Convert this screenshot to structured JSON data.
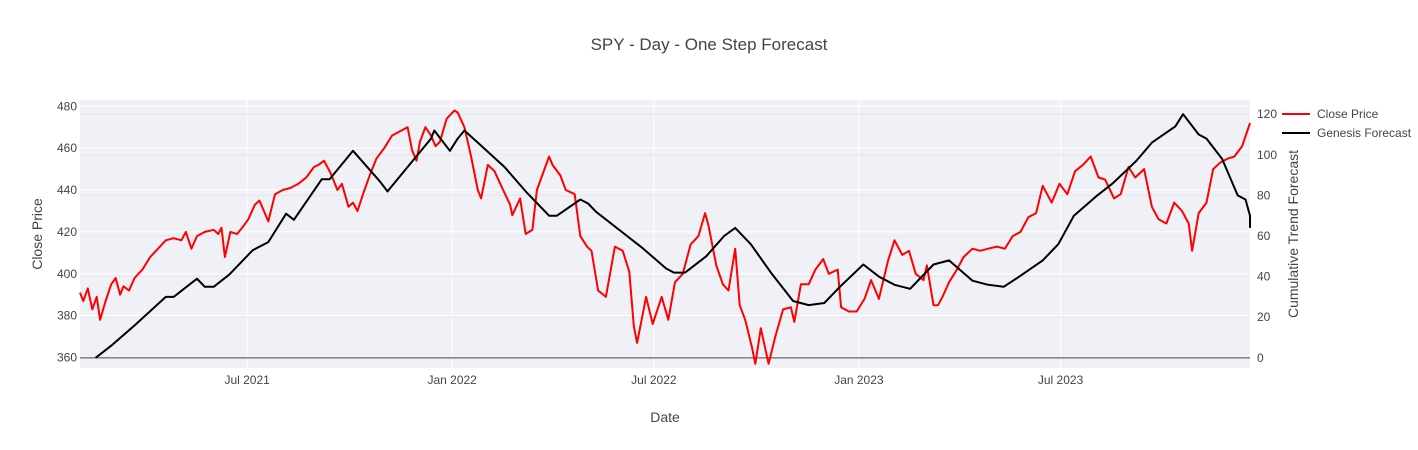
{
  "chart_data": {
    "type": "line",
    "title": "SPY - Day - One Step Forecast",
    "xlabel": "Date",
    "ylabel": "Close Price",
    "y2label": "Cumulative Trend Forecast",
    "xlim": [
      "2021-02-01",
      "2023-12-18"
    ],
    "ylim": [
      355,
      483
    ],
    "y2lim": [
      -5,
      127
    ],
    "x_ticks": [
      {
        "date": "2021-07-01",
        "label": "Jul 2021"
      },
      {
        "date": "2022-01-01",
        "label": "Jan 2022"
      },
      {
        "date": "2022-07-01",
        "label": "Jul 2022"
      },
      {
        "date": "2023-01-01",
        "label": "Jan 2023"
      },
      {
        "date": "2023-07-01",
        "label": "Jul 2023"
      }
    ],
    "y_ticks": [
      360,
      380,
      400,
      420,
      440,
      460,
      480
    ],
    "y2_ticks": [
      0,
      20,
      40,
      60,
      80,
      100,
      120
    ],
    "grid": true,
    "legend_position": "top-right",
    "colors": {
      "close": "#ff0000",
      "forecast": "#000000",
      "plot_bg": "#f0f1f6",
      "grid": "#ffffff"
    },
    "series": [
      {
        "name": "Close Price",
        "axis": "left",
        "points": [
          [
            "2021-02-01",
            391
          ],
          [
            "2021-02-04",
            387
          ],
          [
            "2021-02-08",
            393
          ],
          [
            "2021-02-12",
            383
          ],
          [
            "2021-02-16",
            389
          ],
          [
            "2021-02-19",
            378
          ],
          [
            "2021-02-24",
            387
          ],
          [
            "2021-03-01",
            395
          ],
          [
            "2021-03-05",
            398
          ],
          [
            "2021-03-09",
            390
          ],
          [
            "2021-03-12",
            394
          ],
          [
            "2021-03-17",
            392
          ],
          [
            "2021-03-22",
            398
          ],
          [
            "2021-03-29",
            402
          ],
          [
            "2021-04-05",
            408
          ],
          [
            "2021-04-12",
            412
          ],
          [
            "2021-04-19",
            416
          ],
          [
            "2021-04-26",
            417
          ],
          [
            "2021-05-03",
            416
          ],
          [
            "2021-05-07",
            420
          ],
          [
            "2021-05-12",
            412
          ],
          [
            "2021-05-17",
            418
          ],
          [
            "2021-05-24",
            420
          ],
          [
            "2021-06-01",
            421
          ],
          [
            "2021-06-05",
            419
          ],
          [
            "2021-06-08",
            422
          ],
          [
            "2021-06-11",
            408
          ],
          [
            "2021-06-16",
            420
          ],
          [
            "2021-06-22",
            419
          ],
          [
            "2021-06-28",
            423
          ],
          [
            "2021-07-02",
            426
          ],
          [
            "2021-07-08",
            433
          ],
          [
            "2021-07-12",
            435
          ],
          [
            "2021-07-16",
            430
          ],
          [
            "2021-07-20",
            425
          ],
          [
            "2021-07-26",
            438
          ],
          [
            "2021-08-02",
            440
          ],
          [
            "2021-08-09",
            441
          ],
          [
            "2021-08-16",
            443
          ],
          [
            "2021-08-23",
            446
          ],
          [
            "2021-08-30",
            451
          ],
          [
            "2021-09-03",
            452
          ],
          [
            "2021-09-08",
            454
          ],
          [
            "2021-09-14",
            448
          ],
          [
            "2021-09-20",
            440
          ],
          [
            "2021-09-24",
            443
          ],
          [
            "2021-09-30",
            432
          ],
          [
            "2021-10-04",
            434
          ],
          [
            "2021-10-08",
            430
          ],
          [
            "2021-10-13",
            438
          ],
          [
            "2021-10-19",
            447
          ],
          [
            "2021-10-25",
            455
          ],
          [
            "2021-11-01",
            460
          ],
          [
            "2021-11-08",
            466
          ],
          [
            "2021-11-15",
            468
          ],
          [
            "2021-11-22",
            470
          ],
          [
            "2021-11-26",
            459
          ],
          [
            "2021-11-30",
            454
          ],
          [
            "2021-12-03",
            463
          ],
          [
            "2021-12-08",
            470
          ],
          [
            "2021-12-13",
            466
          ],
          [
            "2021-12-17",
            461
          ],
          [
            "2021-12-21",
            463
          ],
          [
            "2021-12-27",
            474
          ],
          [
            "2022-01-03",
            478
          ],
          [
            "2022-01-06",
            477
          ],
          [
            "2022-01-12",
            470
          ],
          [
            "2022-01-18",
            456
          ],
          [
            "2022-01-24",
            440
          ],
          [
            "2022-01-27",
            436
          ],
          [
            "2022-02-02",
            452
          ],
          [
            "2022-02-08",
            449
          ],
          [
            "2022-02-14",
            442
          ],
          [
            "2022-02-22",
            433
          ],
          [
            "2022-02-24",
            428
          ],
          [
            "2022-03-03",
            436
          ],
          [
            "2022-03-08",
            419
          ],
          [
            "2022-03-14",
            421
          ],
          [
            "2022-03-18",
            440
          ],
          [
            "2022-03-29",
            456
          ],
          [
            "2022-04-01",
            452
          ],
          [
            "2022-04-08",
            447
          ],
          [
            "2022-04-13",
            440
          ],
          [
            "2022-04-21",
            438
          ],
          [
            "2022-04-26",
            418
          ],
          [
            "2022-05-02",
            413
          ],
          [
            "2022-05-06",
            411
          ],
          [
            "2022-05-12",
            392
          ],
          [
            "2022-05-19",
            389
          ],
          [
            "2022-05-27",
            413
          ],
          [
            "2022-06-03",
            411
          ],
          [
            "2022-06-09",
            401
          ],
          [
            "2022-06-13",
            375
          ],
          [
            "2022-06-16",
            367
          ],
          [
            "2022-06-24",
            389
          ],
          [
            "2022-06-30",
            376
          ],
          [
            "2022-07-08",
            389
          ],
          [
            "2022-07-14",
            378
          ],
          [
            "2022-07-20",
            396
          ],
          [
            "2022-07-27",
            400
          ],
          [
            "2022-08-03",
            414
          ],
          [
            "2022-08-10",
            418
          ],
          [
            "2022-08-16",
            429
          ],
          [
            "2022-08-19",
            423
          ],
          [
            "2022-08-26",
            404
          ],
          [
            "2022-09-01",
            395
          ],
          [
            "2022-09-06",
            392
          ],
          [
            "2022-09-12",
            412
          ],
          [
            "2022-09-16",
            385
          ],
          [
            "2022-09-21",
            378
          ],
          [
            "2022-09-27",
            365
          ],
          [
            "2022-09-30",
            357
          ],
          [
            "2022-10-05",
            374
          ],
          [
            "2022-10-12",
            357
          ],
          [
            "2022-10-18",
            370
          ],
          [
            "2022-10-25",
            383
          ],
          [
            "2022-11-01",
            384
          ],
          [
            "2022-11-04",
            377
          ],
          [
            "2022-11-10",
            395
          ],
          [
            "2022-11-17",
            395
          ],
          [
            "2022-11-23",
            402
          ],
          [
            "2022-11-30",
            407
          ],
          [
            "2022-12-05",
            400
          ],
          [
            "2022-12-13",
            402
          ],
          [
            "2022-12-16",
            384
          ],
          [
            "2022-12-23",
            382
          ],
          [
            "2022-12-30",
            382
          ],
          [
            "2023-01-06",
            388
          ],
          [
            "2023-01-12",
            397
          ],
          [
            "2023-01-19",
            388
          ],
          [
            "2023-01-27",
            406
          ],
          [
            "2023-02-02",
            416
          ],
          [
            "2023-02-09",
            409
          ],
          [
            "2023-02-15",
            411
          ],
          [
            "2023-02-21",
            400
          ],
          [
            "2023-02-28",
            397
          ],
          [
            "2023-03-03",
            404
          ],
          [
            "2023-03-09",
            385
          ],
          [
            "2023-03-13",
            385
          ],
          [
            "2023-03-17",
            389
          ],
          [
            "2023-03-23",
            396
          ],
          [
            "2023-03-30",
            402
          ],
          [
            "2023-04-05",
            408
          ],
          [
            "2023-04-13",
            412
          ],
          [
            "2023-04-20",
            411
          ],
          [
            "2023-04-27",
            412
          ],
          [
            "2023-05-05",
            413
          ],
          [
            "2023-05-12",
            412
          ],
          [
            "2023-05-19",
            418
          ],
          [
            "2023-05-26",
            420
          ],
          [
            "2023-06-02",
            427
          ],
          [
            "2023-06-09",
            429
          ],
          [
            "2023-06-15",
            442
          ],
          [
            "2023-06-23",
            434
          ],
          [
            "2023-06-30",
            443
          ],
          [
            "2023-07-07",
            438
          ],
          [
            "2023-07-14",
            449
          ],
          [
            "2023-07-21",
            452
          ],
          [
            "2023-07-28",
            456
          ],
          [
            "2023-08-04",
            446
          ],
          [
            "2023-08-10",
            445
          ],
          [
            "2023-08-18",
            436
          ],
          [
            "2023-08-24",
            438
          ],
          [
            "2023-08-31",
            451
          ],
          [
            "2023-09-06",
            446
          ],
          [
            "2023-09-14",
            450
          ],
          [
            "2023-09-21",
            432
          ],
          [
            "2023-09-27",
            426
          ],
          [
            "2023-10-04",
            424
          ],
          [
            "2023-10-11",
            434
          ],
          [
            "2023-10-18",
            430
          ],
          [
            "2023-10-24",
            424
          ],
          [
            "2023-10-27",
            411
          ],
          [
            "2023-11-02",
            429
          ],
          [
            "2023-11-09",
            434
          ],
          [
            "2023-11-15",
            450
          ],
          [
            "2023-11-21",
            453
          ],
          [
            "2023-11-28",
            455
          ],
          [
            "2023-12-04",
            456
          ],
          [
            "2023-12-11",
            461
          ],
          [
            "2023-12-18",
            472
          ]
        ]
      },
      {
        "name": "Genesis Forecast",
        "axis": "right",
        "points": [
          [
            "2021-02-15",
            0
          ],
          [
            "2021-03-01",
            6
          ],
          [
            "2021-03-22",
            16
          ],
          [
            "2021-04-19",
            30
          ],
          [
            "2021-04-26",
            30
          ],
          [
            "2021-05-17",
            39
          ],
          [
            "2021-05-24",
            35
          ],
          [
            "2021-06-01",
            35
          ],
          [
            "2021-06-15",
            41
          ],
          [
            "2021-07-06",
            53
          ],
          [
            "2021-07-20",
            57
          ],
          [
            "2021-08-05",
            71
          ],
          [
            "2021-08-12",
            68
          ],
          [
            "2021-09-06",
            88
          ],
          [
            "2021-09-13",
            88
          ],
          [
            "2021-10-04",
            102
          ],
          [
            "2021-10-28",
            87
          ],
          [
            "2021-11-04",
            82
          ],
          [
            "2021-12-13",
            108
          ],
          [
            "2021-12-16",
            112
          ],
          [
            "2021-12-30",
            102
          ],
          [
            "2022-01-06",
            108
          ],
          [
            "2022-01-12",
            112
          ],
          [
            "2022-01-24",
            106
          ],
          [
            "2022-02-17",
            94
          ],
          [
            "2022-03-08",
            82
          ],
          [
            "2022-03-29",
            70
          ],
          [
            "2022-04-05",
            70
          ],
          [
            "2022-04-26",
            78
          ],
          [
            "2022-05-03",
            76
          ],
          [
            "2022-05-10",
            72
          ],
          [
            "2022-06-07",
            60
          ],
          [
            "2022-06-21",
            54
          ],
          [
            "2022-07-12",
            44
          ],
          [
            "2022-07-19",
            42
          ],
          [
            "2022-07-29",
            42
          ],
          [
            "2022-08-17",
            50
          ],
          [
            "2022-09-02",
            60
          ],
          [
            "2022-09-12",
            64
          ],
          [
            "2022-09-26",
            56
          ],
          [
            "2022-10-14",
            42
          ],
          [
            "2022-11-03",
            28
          ],
          [
            "2022-11-17",
            26
          ],
          [
            "2022-12-01",
            27
          ],
          [
            "2022-12-15",
            35
          ],
          [
            "2023-01-05",
            46
          ],
          [
            "2023-01-19",
            40
          ],
          [
            "2023-02-02",
            36
          ],
          [
            "2023-02-16",
            34
          ],
          [
            "2023-03-09",
            46
          ],
          [
            "2023-03-23",
            48
          ],
          [
            "2023-04-13",
            38
          ],
          [
            "2023-04-27",
            36
          ],
          [
            "2023-05-11",
            35
          ],
          [
            "2023-05-25",
            40
          ],
          [
            "2023-06-15",
            48
          ],
          [
            "2023-06-29",
            56
          ],
          [
            "2023-07-13",
            70
          ],
          [
            "2023-08-03",
            80
          ],
          [
            "2023-08-17",
            86
          ],
          [
            "2023-09-07",
            97
          ],
          [
            "2023-09-21",
            106
          ],
          [
            "2023-10-12",
            114
          ],
          [
            "2023-10-19",
            120
          ],
          [
            "2023-11-02",
            110
          ],
          [
            "2023-11-09",
            108
          ],
          [
            "2023-11-23",
            98
          ],
          [
            "2023-12-07",
            80
          ],
          [
            "2023-12-14",
            78
          ],
          [
            "2023-12-21",
            70
          ],
          [
            "2023-12-28",
            64
          ],
          [
            "2024-01-04",
            64
          ]
        ]
      }
    ]
  }
}
